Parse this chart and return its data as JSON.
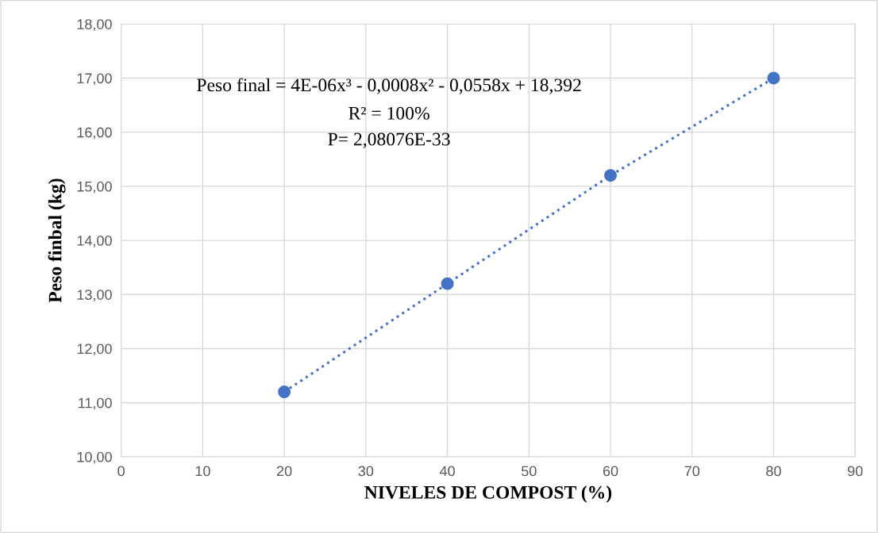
{
  "chart_data": {
    "type": "scatter",
    "xlabel": "NIVELES DE COMPOST (%)",
    "ylabel": "Peso finbal (kg)",
    "series": [
      {
        "color": "#4472c4",
        "marker": "circle",
        "x": [
          20,
          40,
          60,
          80
        ],
        "values": [
          11.2,
          13.2,
          15.2,
          17.0
        ]
      },
      {
        "type": "line",
        "color": "#4472c4",
        "line_style": "dotted",
        "marker": "none",
        "x": [
          20,
          40,
          60,
          80
        ],
        "values": [
          11.2,
          13.2,
          15.2,
          17.0
        ]
      }
    ],
    "annotations": [
      "Peso final = 4E-06x³ - 0,0008x² - 0,0558x + 18,392",
      "R² = 100%",
      "P= 2,08076E-33"
    ],
    "xlim": [
      0,
      90
    ],
    "xticks": [
      0,
      10,
      20,
      30,
      40,
      50,
      60,
      70,
      80,
      90
    ],
    "ylim": [
      10,
      18
    ],
    "yticks": [
      {
        "value": 10,
        "label": "10,00"
      },
      {
        "value": 11,
        "label": "11,00"
      },
      {
        "value": 12,
        "label": "12,00"
      },
      {
        "value": 13,
        "label": "13,00"
      },
      {
        "value": 14,
        "label": "14,00"
      },
      {
        "value": 15,
        "label": "15,00"
      },
      {
        "value": 16,
        "label": "16,00"
      },
      {
        "value": 17,
        "label": "17,00"
      },
      {
        "value": 18,
        "label": "18,00"
      }
    ],
    "grid": true,
    "legend": false
  }
}
